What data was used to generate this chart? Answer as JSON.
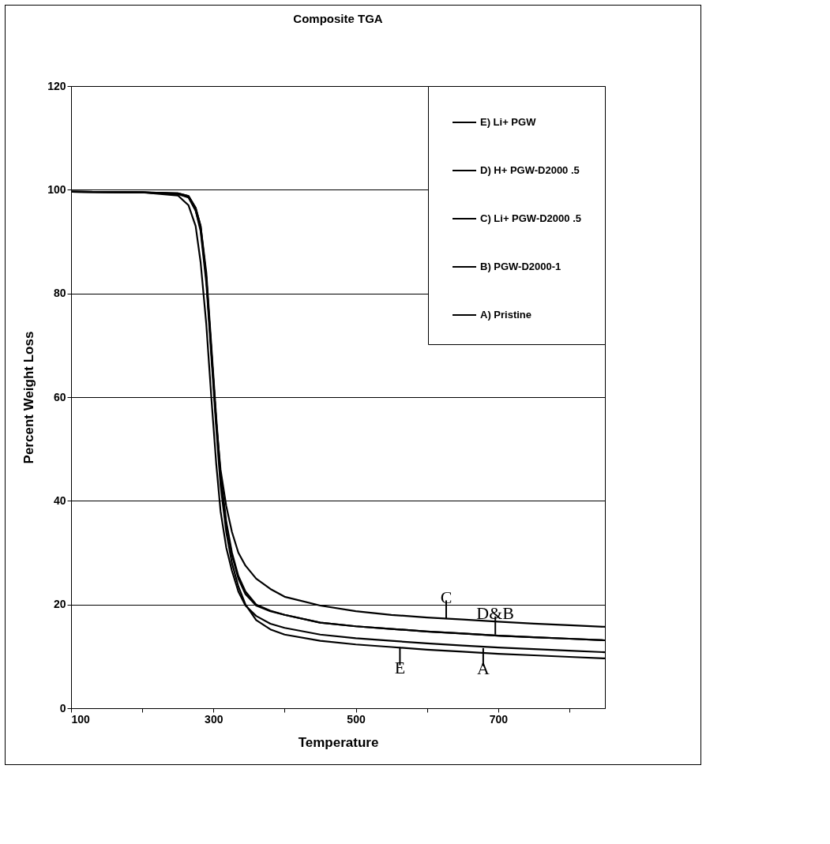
{
  "chart_data": {
    "type": "line",
    "title": "Composite TGA",
    "xlabel": "Temperature",
    "ylabel": "Percent Weight Loss",
    "x": [
      100,
      200,
      250,
      265,
      275,
      282,
      290,
      297,
      304,
      310,
      318,
      326,
      335,
      345,
      360,
      380,
      400,
      450,
      500,
      550,
      600,
      650,
      700,
      750,
      800,
      850
    ],
    "series": [
      {
        "name": "E) Li+ PGW",
        "color": "#000000",
        "values": [
          99.6,
          99.5,
          99.2,
          98.5,
          96,
          92,
          82,
          68,
          54,
          43,
          34,
          28,
          23.5,
          20,
          17,
          15.2,
          14.2,
          13,
          12.3,
          11.8,
          11.3,
          10.9,
          10.5,
          10.2,
          9.9,
          9.6
        ]
      },
      {
        "name": "D) H+ PGW-D2000 .5",
        "color": "#000000",
        "values": [
          99.6,
          99.5,
          99.3,
          98.8,
          96.5,
          93,
          84,
          70,
          56,
          45,
          36,
          30,
          25.5,
          22.5,
          20,
          18.8,
          18,
          16.5,
          15.8,
          15.3,
          14.8,
          14.4,
          14,
          13.7,
          13.4,
          13.1
        ]
      },
      {
        "name": "C) Li+ PGW-D2000 .5",
        "color": "#000000",
        "values": [
          99.6,
          99.5,
          99.3,
          98.8,
          96.5,
          93,
          83,
          69,
          55,
          46,
          39,
          34,
          30,
          27.5,
          25,
          23,
          21.5,
          19.8,
          18.7,
          18,
          17.5,
          17.1,
          16.7,
          16.3,
          16,
          15.7
        ]
      },
      {
        "name": "B) PGW-D2000-1",
        "color": "#000000",
        "values": [
          99.6,
          99.5,
          99.2,
          98.6,
          96,
          92.5,
          83,
          69,
          55,
          44,
          35.5,
          29.5,
          25,
          22,
          19.8,
          18.7,
          18,
          16.5,
          15.8,
          15.3,
          14.8,
          14.4,
          14,
          13.7,
          13.4,
          13.1
        ]
      },
      {
        "name": "A) Pristine",
        "color": "#000000",
        "values": [
          99.6,
          99.5,
          98.9,
          97,
          93,
          86,
          74,
          60,
          47,
          38,
          31,
          26.5,
          22.5,
          19.8,
          17.8,
          16.3,
          15.5,
          14.2,
          13.5,
          13,
          12.5,
          12.1,
          11.7,
          11.4,
          11.1,
          10.8
        ]
      }
    ],
    "xlim": [
      100,
      850
    ],
    "xticks": [
      100,
      {
        "value": 200,
        "label": null
      },
      300,
      {
        "value": 400,
        "label": null
      },
      500,
      {
        "value": 600,
        "label": null
      },
      700,
      {
        "value": 800,
        "label": null
      }
    ],
    "ylim": [
      0,
      120
    ],
    "yticks": [
      0,
      20,
      40,
      60,
      80,
      100,
      120
    ],
    "grid": "y",
    "legend": "top right",
    "annotations": [
      {
        "text": "C",
        "x": 627,
        "y": 17.3
      },
      {
        "text": "D&B",
        "x": 696,
        "y": 14.2
      },
      {
        "text": "E",
        "x": 562,
        "y": 11.8
      },
      {
        "text": "A",
        "x": 679,
        "y": 11.6
      }
    ]
  }
}
